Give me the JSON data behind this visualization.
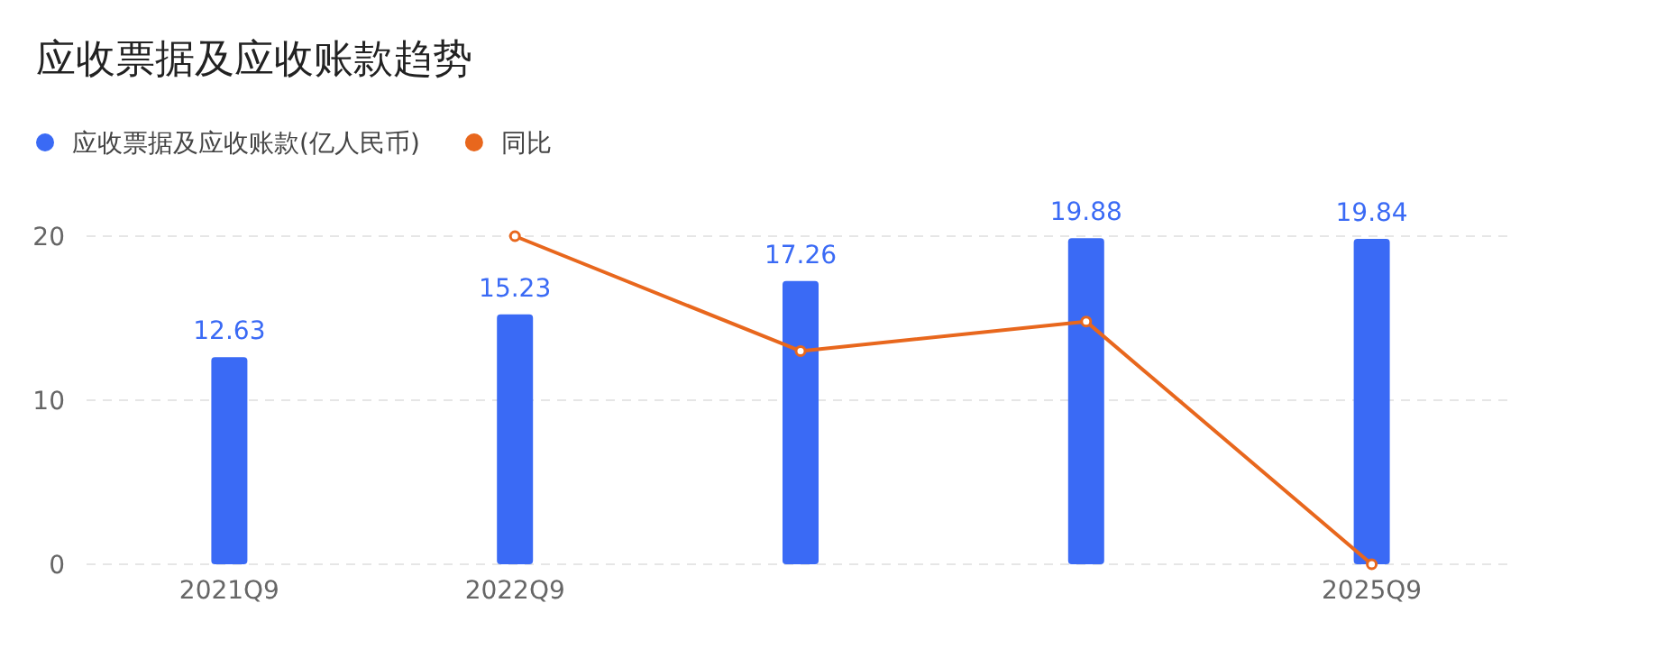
{
  "chart_data": {
    "type": "bar",
    "title": "应收票据及应收账款趋势",
    "categories": [
      "2021Q9",
      "2022Q9",
      null,
      null,
      "2025Q9"
    ],
    "ylim": [
      0,
      20
    ],
    "yticks": [
      0,
      10,
      20
    ],
    "grid": "y",
    "legend": "top left",
    "series": [
      {
        "name": "应收票据及应收账款(亿人民币)",
        "color": "#3a6af5",
        "values": [
          12.63,
          15.23,
          17.26,
          19.88,
          19.84
        ],
        "value_labels": [
          "12.63",
          "15.23",
          "17.26",
          "19.88",
          "19.84"
        ]
      },
      {
        "name": "同比",
        "type": "line",
        "color": "#e8671d",
        "marker": "circle",
        "values": [
          null,
          20,
          13,
          14.8,
          0
        ]
      }
    ]
  }
}
